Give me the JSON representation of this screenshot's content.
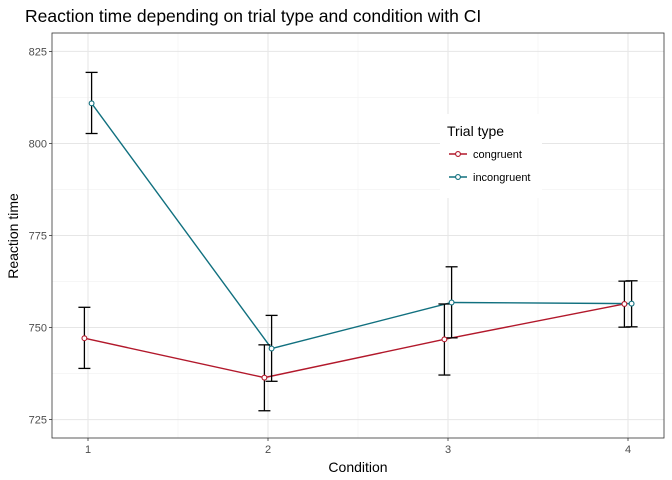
{
  "chart_data": {
    "type": "line",
    "title": "Reaction time depending on trial type and condition with CI",
    "xlabel": "Condition",
    "ylabel": "Reaction time",
    "categories": [
      "1",
      "2",
      "3",
      "4"
    ],
    "x": [
      1,
      2,
      3,
      4
    ],
    "xlim": [
      0.8,
      4.2
    ],
    "ylim": [
      720,
      830
    ],
    "yticks": [
      725,
      750,
      775,
      800,
      825
    ],
    "grid": true,
    "legend": {
      "title": "Trial type",
      "placement": "top-right"
    },
    "series": [
      {
        "name": "congruent",
        "color": "#b2182b",
        "values": [
          747.1,
          736.4,
          746.8,
          756.4
        ],
        "ci_lower": [
          738.9,
          727.4,
          737.1,
          750.1
        ],
        "ci_upper": [
          755.5,
          745.3,
          756.4,
          762.6
        ]
      },
      {
        "name": "incongruent",
        "color": "#11707f",
        "values": [
          810.9,
          744.3,
          756.8,
          756.5
        ],
        "ci_lower": [
          802.7,
          735.4,
          747.2,
          750.2
        ],
        "ci_upper": [
          819.3,
          753.3,
          766.5,
          762.7
        ]
      }
    ]
  }
}
